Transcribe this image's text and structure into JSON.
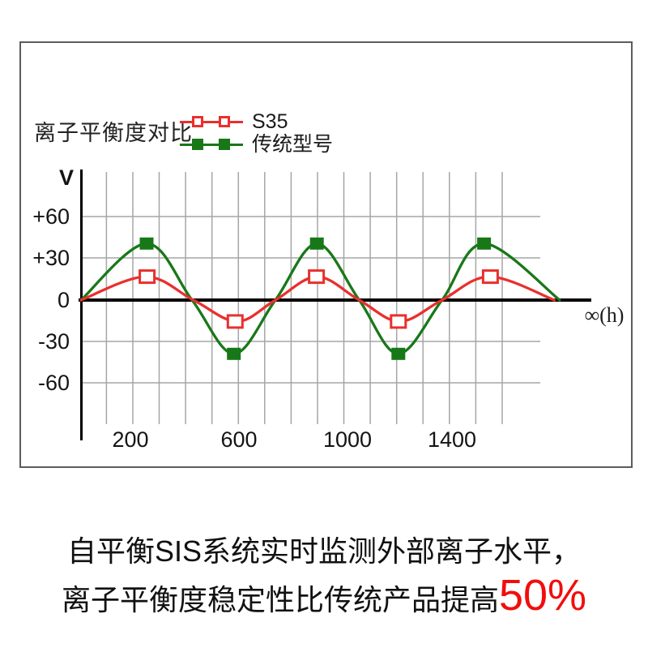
{
  "chart_data": {
    "type": "line",
    "title": "离子平衡度对比",
    "y_axis_unit": "V",
    "x_axis_end_label": "∞(h)",
    "xlabel": "",
    "ylabel": "V",
    "y_ticks": [
      "+60",
      "+30",
      "0",
      "-30",
      "-60"
    ],
    "y_tick_values": [
      60,
      30,
      0,
      -30,
      -60
    ],
    "x_ticks": [
      "200",
      "600",
      "1000",
      "1400"
    ],
    "x_tick_values": [
      200,
      600,
      1000,
      1400
    ],
    "xlim": [
      0,
      2000
    ],
    "ylim": [
      -75,
      95
    ],
    "grid": true,
    "legend_position": "top-center",
    "series": [
      {
        "name": "S35",
        "color": "#e8302e",
        "marker": "open-square",
        "points": [
          [
            0,
            0
          ],
          [
            245,
            17
          ],
          [
            425,
            0
          ],
          [
            590,
            -15.5
          ],
          [
            735,
            0
          ],
          [
            893,
            17
          ],
          [
            1052,
            0
          ],
          [
            1205,
            -15.5
          ],
          [
            1365,
            0
          ],
          [
            1545,
            17
          ],
          [
            1790,
            0
          ]
        ],
        "marker_points": [
          [
            250,
            17
          ],
          [
            583,
            -15.5
          ],
          [
            890,
            17
          ],
          [
            1200,
            -15.5
          ],
          [
            1548,
            17
          ]
        ]
      },
      {
        "name": "传统型号",
        "color": "#187818",
        "marker": "filled-square",
        "points": [
          [
            0,
            0
          ],
          [
            248,
            41
          ],
          [
            420,
            0
          ],
          [
            578,
            -39
          ],
          [
            735,
            0
          ],
          [
            892,
            41
          ],
          [
            1052,
            0
          ],
          [
            1200,
            -39
          ],
          [
            1365,
            0
          ],
          [
            1524,
            41
          ],
          [
            1810,
            0
          ]
        ],
        "marker_points": [
          [
            248,
            41
          ],
          [
            578,
            -39
          ],
          [
            892,
            41
          ],
          [
            1200,
            -39
          ],
          [
            1524,
            41
          ]
        ]
      }
    ]
  },
  "legend": {
    "items": [
      {
        "label": "S35",
        "color": "#e8302e",
        "marker": "open-square"
      },
      {
        "label": "传统型号",
        "color": "#187818",
        "marker": "filled-square"
      }
    ]
  },
  "caption": {
    "line1": "自平衡SIS系统实时监测外部离子水平，",
    "line2_text": "离子平衡度稳定性比传统产品提高",
    "line2_highlight": "50%",
    "highlight_color": "#f20d0d"
  }
}
